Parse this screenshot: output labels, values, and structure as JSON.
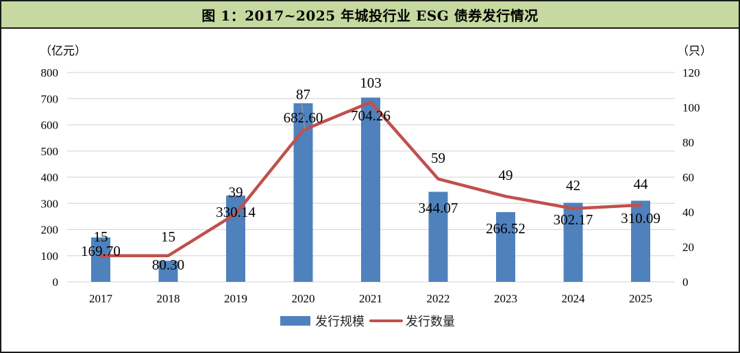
{
  "title": "图 1：2017~2025 年城投行业 ESG 债券发行情况",
  "chart_data": {
    "type": "bar+line",
    "title": "图 1：2017~2025 年城投行业 ESG 债券发行情况",
    "categories": [
      "2017",
      "2018",
      "2019",
      "2020",
      "2021",
      "2022",
      "2023",
      "2024",
      "2025"
    ],
    "series": [
      {
        "name": "发行规模",
        "type": "bar",
        "axis": "left",
        "color": "#4f81bd",
        "values": [
          169.7,
          80.3,
          330.14,
          682.6,
          704.26,
          344.07,
          266.52,
          302.17,
          310.09
        ],
        "labels": [
          "169.70",
          "80.30",
          "330.14",
          "682.60",
          "704.26",
          "344.07",
          "266.52",
          "302.17",
          "310.09"
        ]
      },
      {
        "name": "发行数量",
        "type": "line",
        "axis": "right",
        "color": "#c0504d",
        "values": [
          15,
          15,
          39,
          87,
          103,
          59,
          49,
          42,
          44
        ],
        "labels": [
          "15",
          "15",
          "39",
          "87",
          "103",
          "59",
          "49",
          "42",
          "44"
        ]
      }
    ],
    "left_axis": {
      "label": "（亿元）",
      "ylim": [
        0,
        800
      ],
      "ticks": [
        "0",
        "100",
        "200",
        "300",
        "400",
        "500",
        "600",
        "700",
        "800"
      ]
    },
    "right_axis": {
      "label": "（只）",
      "ylim": [
        0,
        120
      ],
      "ticks": [
        "0",
        "20",
        "40",
        "60",
        "80",
        "100",
        "120"
      ]
    },
    "xlabel": "",
    "grid": true,
    "legend_position": "bottom"
  }
}
